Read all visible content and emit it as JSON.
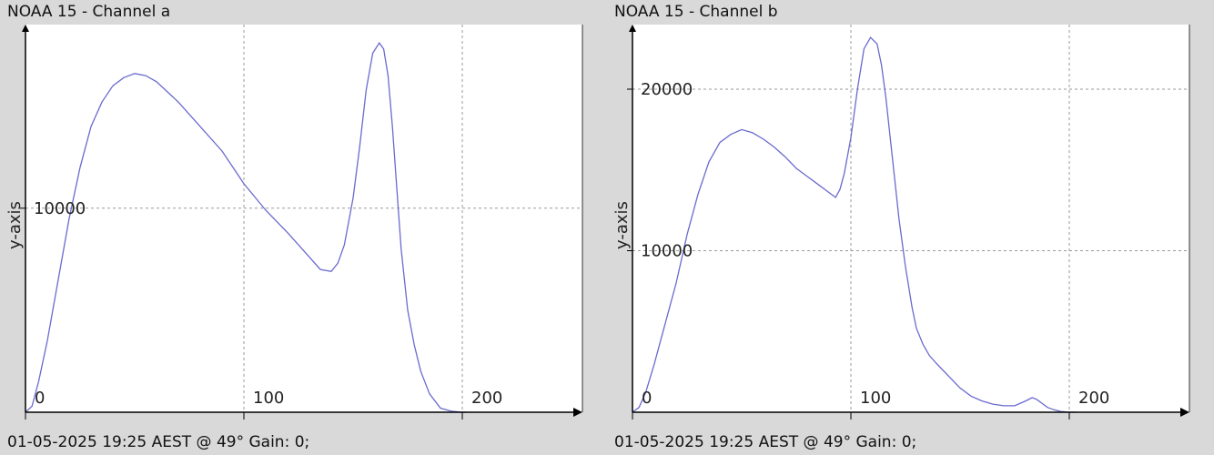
{
  "panels": [
    {
      "title": "NOAA 15 - Channel a",
      "footer": "01-05-2025 19:25 AEST @ 49° Gain: 0;",
      "chart_data": {
        "type": "line",
        "title": "NOAA 15 - Channel a",
        "xlabel": "",
        "ylabel": "y-axis",
        "xlim": [
          0,
          255
        ],
        "ylim": [
          0,
          19000
        ],
        "xticks": [
          0,
          100,
          200
        ],
        "yticks": [
          10000
        ],
        "grid": true,
        "line_color": "#6a6ad0",
        "x": [
          0,
          3,
          6,
          10,
          15,
          20,
          25,
          30,
          35,
          40,
          45,
          50,
          55,
          60,
          65,
          70,
          80,
          90,
          100,
          110,
          120,
          130,
          135,
          140,
          143,
          146,
          150,
          153,
          156,
          159,
          162,
          164,
          166,
          168,
          170,
          172,
          175,
          178,
          181,
          185,
          190,
          195,
          200,
          202
        ],
        "y": [
          0,
          300,
          1500,
          3500,
          6500,
          9500,
          12000,
          14000,
          15200,
          16000,
          16400,
          16600,
          16500,
          16200,
          15700,
          15200,
          14000,
          12800,
          11200,
          9900,
          8800,
          7600,
          7000,
          6900,
          7300,
          8200,
          10500,
          13000,
          15800,
          17600,
          18100,
          17800,
          16500,
          14000,
          11000,
          8000,
          5000,
          3300,
          2000,
          900,
          200,
          50,
          0,
          0
        ]
      }
    },
    {
      "title": "NOAA 15 - Channel b",
      "footer": "01-05-2025 19:25 AEST @ 49° Gain: 0;",
      "chart_data": {
        "type": "line",
        "title": "NOAA 15 - Channel b",
        "xlabel": "",
        "ylabel": "y-axis",
        "xlim": [
          0,
          255
        ],
        "ylim": [
          0,
          24000
        ],
        "xticks": [
          0,
          100,
          200
        ],
        "yticks": [
          10000,
          20000
        ],
        "grid": true,
        "line_color": "#6a6ad0",
        "x": [
          0,
          3,
          6,
          10,
          15,
          20,
          25,
          30,
          35,
          40,
          45,
          50,
          55,
          60,
          65,
          70,
          75,
          80,
          85,
          90,
          93,
          95,
          97,
          100,
          103,
          106,
          109,
          112,
          114,
          116,
          118,
          120,
          122,
          125,
          128,
          130,
          133,
          136,
          140,
          145,
          150,
          155,
          160,
          165,
          170,
          175,
          180,
          183,
          185,
          188,
          190,
          193,
          196,
          200,
          203
        ],
        "y": [
          0,
          300,
          1200,
          3000,
          5500,
          8000,
          11000,
          13500,
          15500,
          16700,
          17200,
          17500,
          17300,
          16900,
          16400,
          15800,
          15100,
          14600,
          14100,
          13600,
          13300,
          13800,
          14800,
          17000,
          20000,
          22500,
          23200,
          22800,
          21500,
          19500,
          17000,
          14500,
          12000,
          9000,
          6500,
          5200,
          4200,
          3500,
          2900,
          2200,
          1500,
          1000,
          700,
          500,
          400,
          400,
          700,
          900,
          800,
          500,
          300,
          150,
          50,
          0,
          0
        ]
      }
    }
  ]
}
